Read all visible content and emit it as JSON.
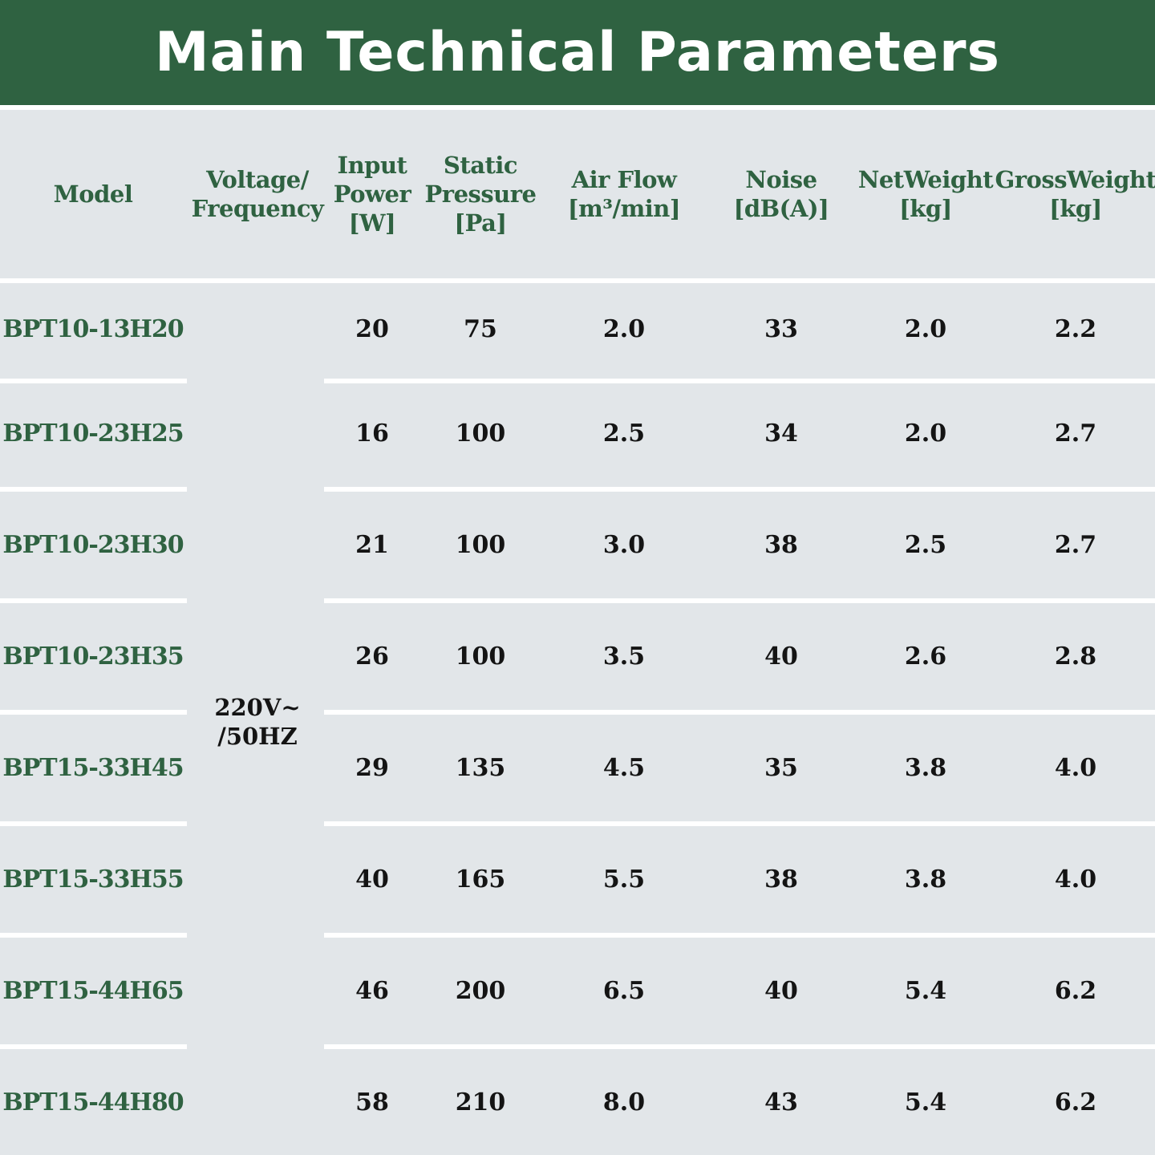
{
  "title": "Main Technical Parameters",
  "colors": {
    "banner": "#2f6241",
    "header_text": "#2f6241",
    "body_bg": "#e2e6e9",
    "value_text": "#141414",
    "separator": "#ffffff"
  },
  "headers": [
    "Model",
    "Voltage/\nFrequency",
    "Input\nPower\n[W]",
    "Static\nPressure\n[Pa]",
    "Air Flow\n[m³/min]",
    "Noise\n[dB(A)]",
    "NetWeight\n[kg]",
    "GrossWeight\n[kg]"
  ],
  "voltage": "220V~\n/50HZ",
  "rows": [
    {
      "model": "BPT10-13H20",
      "power": "20",
      "pressure": "75",
      "airflow": "2.0",
      "noise": "33",
      "net": "2.0",
      "gross": "2.2"
    },
    {
      "model": "BPT10-23H25",
      "power": "16",
      "pressure": "100",
      "airflow": "2.5",
      "noise": "34",
      "net": "2.0",
      "gross": "2.7"
    },
    {
      "model": "BPT10-23H30",
      "power": "21",
      "pressure": "100",
      "airflow": "3.0",
      "noise": "38",
      "net": "2.5",
      "gross": "2.7"
    },
    {
      "model": "BPT10-23H35",
      "power": "26",
      "pressure": "100",
      "airflow": "3.5",
      "noise": "40",
      "net": "2.6",
      "gross": "2.8"
    },
    {
      "model": "BPT15-33H45",
      "power": "29",
      "pressure": "135",
      "airflow": "4.5",
      "noise": "35",
      "net": "3.8",
      "gross": "4.0"
    },
    {
      "model": "BPT15-33H55",
      "power": "40",
      "pressure": "165",
      "airflow": "5.5",
      "noise": "38",
      "net": "3.8",
      "gross": "4.0"
    },
    {
      "model": "BPT15-44H65",
      "power": "46",
      "pressure": "200",
      "airflow": "6.5",
      "noise": "40",
      "net": "5.4",
      "gross": "6.2"
    },
    {
      "model": "BPT15-44H80",
      "power": "58",
      "pressure": "210",
      "airflow": "8.0",
      "noise": "43",
      "net": "5.4",
      "gross": "6.2"
    }
  ]
}
